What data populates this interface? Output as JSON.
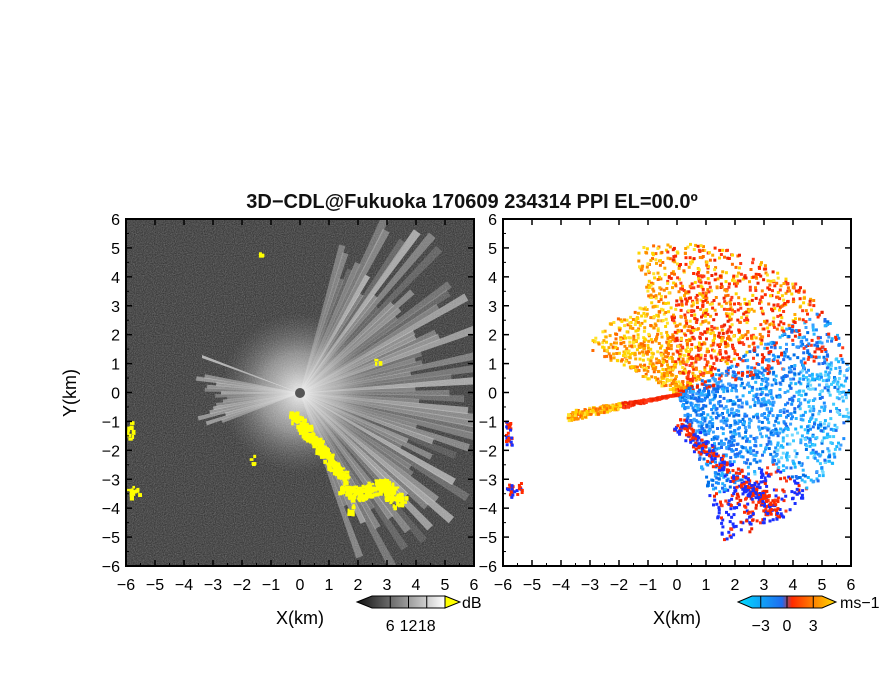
{
  "chart_data": [
    {
      "type": "heatmap",
      "title": "3D−CDL@Fukuoka 170609 234314 PPI EL=00.0º",
      "xlabel": "X(km)",
      "ylabel": "Y(km)",
      "xlim": [
        -6,
        6
      ],
      "ylim": [
        -6,
        6
      ],
      "x_ticks": [
        "−6",
        "−5",
        "−4",
        "−3",
        "−2",
        "−1",
        "0",
        "1",
        "2",
        "3",
        "4",
        "5",
        "6"
      ],
      "y_ticks": [
        "6",
        "5",
        "4",
        "3",
        "2",
        "1",
        "0",
        "−1",
        "−2",
        "−3",
        "−4",
        "−5",
        "−6"
      ],
      "quantity": "SNR",
      "colorbar": {
        "unit": "dB",
        "ticks": [
          "6",
          "12",
          "18"
        ],
        "range": [
          0,
          24
        ],
        "colors": [
          "#111111",
          "#ffffff"
        ],
        "overflow_color": "#ffff00"
      },
      "grid": false,
      "features": {
        "clutter_color": "#ffff00",
        "background_color": "#2a2a2a"
      }
    },
    {
      "type": "heatmap",
      "xlabel": "X(km)",
      "xlim": [
        -6,
        6
      ],
      "ylim": [
        -6,
        6
      ],
      "x_ticks": [
        "−6",
        "−5",
        "−4",
        "−3",
        "−2",
        "−1",
        "0",
        "1",
        "2",
        "3",
        "4",
        "5",
        "6"
      ],
      "y_ticks": [
        "6",
        "5",
        "4",
        "3",
        "2",
        "1",
        "0",
        "−1",
        "−2",
        "−3",
        "−4",
        "−5",
        "−6"
      ],
      "quantity": "Doppler velocity",
      "colorbar": {
        "unit": "ms−1",
        "ticks": [
          "−3",
          "0",
          "3"
        ],
        "range": [
          -4,
          4
        ],
        "colors": [
          "#00e0ff",
          "#1e6cf0",
          "#ff2a00",
          "#ffdd00"
        ]
      },
      "grid": false,
      "features": {
        "positive_color": "#ff4a00",
        "negative_color": "#1a8cff",
        "background_color": "#ffffff"
      }
    }
  ]
}
